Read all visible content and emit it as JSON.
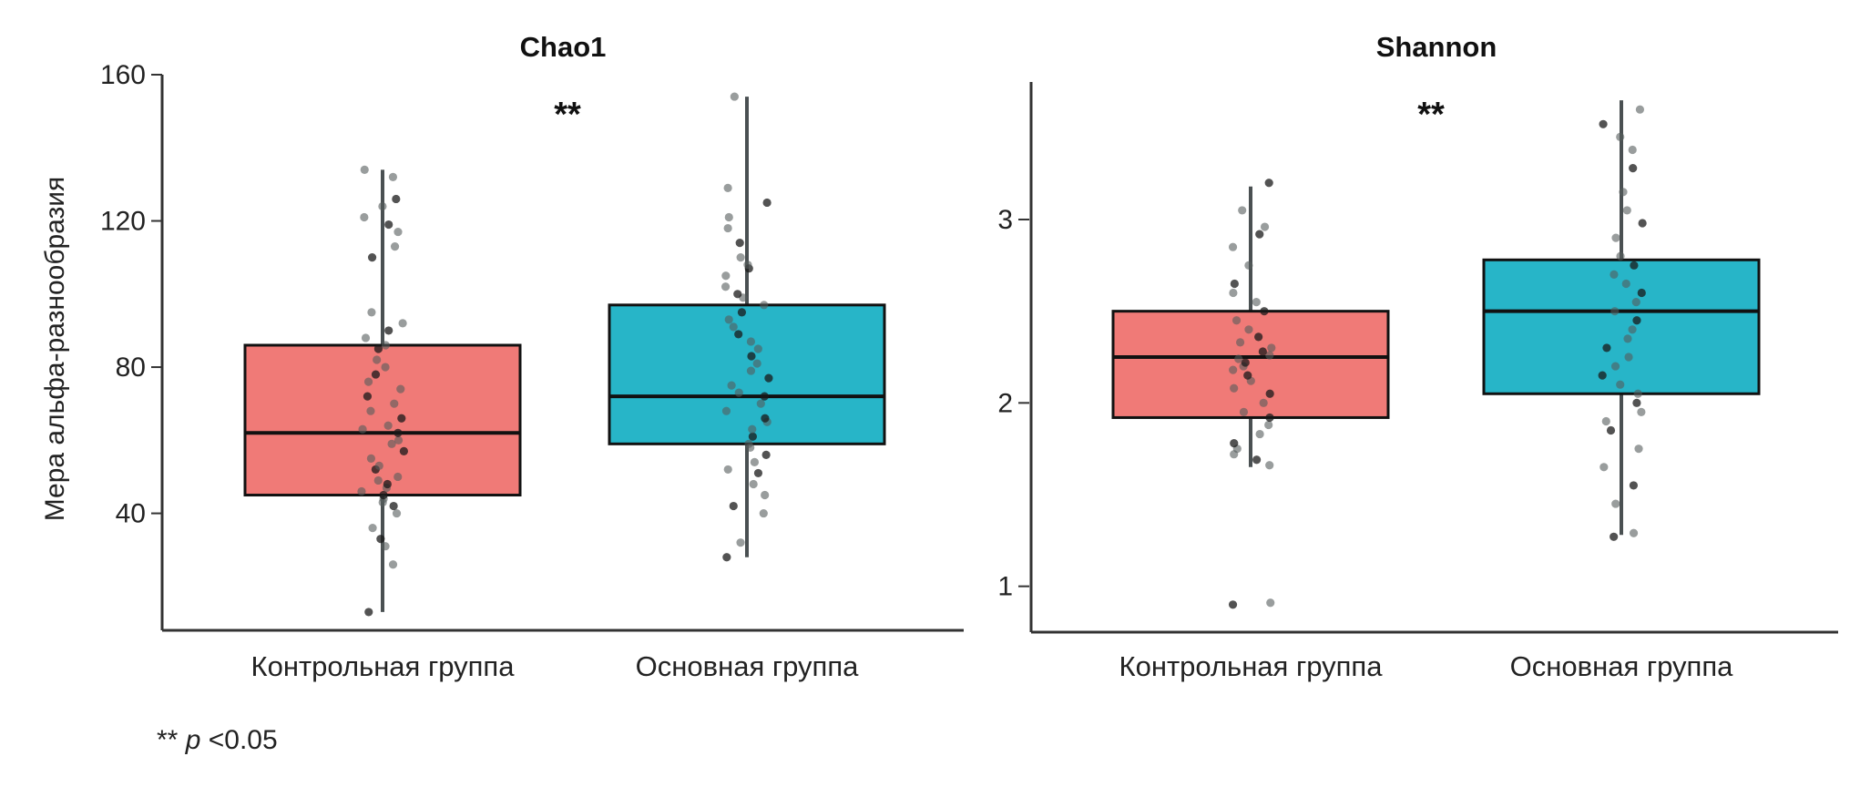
{
  "chart_data": [
    {
      "type": "box",
      "title": "Chao1",
      "ylabel": "Мера альфа-разнообразия",
      "ylim": [
        8,
        160
      ],
      "yticks": [
        "40",
        "80",
        "120",
        "160"
      ],
      "categories": [
        "Контрольная группа",
        "Основная группа"
      ],
      "significance": "**",
      "groups": [
        {
          "name": "Контрольная группа",
          "color": "#F07A77",
          "min": 13,
          "q1": 45,
          "median": 62,
          "q3": 86,
          "max": 134,
          "points": [
            13,
            26,
            31,
            33,
            36,
            40,
            42,
            43,
            44,
            45,
            46,
            47,
            48,
            49,
            50,
            52,
            53,
            55,
            57,
            59,
            60,
            62,
            63,
            64,
            66,
            68,
            70,
            72,
            74,
            76,
            78,
            80,
            82,
            85,
            86,
            88,
            90,
            92,
            95,
            110,
            113,
            117,
            119,
            121,
            124,
            126,
            132,
            134
          ]
        },
        {
          "name": "Основная группа",
          "color": "#27B5C8",
          "min": 28,
          "q1": 59,
          "median": 72,
          "q3": 97,
          "max": 154,
          "points": [
            28,
            32,
            40,
            42,
            45,
            48,
            51,
            52,
            54,
            56,
            58,
            59,
            61,
            63,
            65,
            66,
            68,
            70,
            72,
            73,
            75,
            77,
            79,
            81,
            83,
            85,
            87,
            89,
            91,
            93,
            95,
            97,
            99,
            100,
            102,
            105,
            107,
            108,
            110,
            114,
            118,
            121,
            125,
            129,
            154
          ]
        }
      ]
    },
    {
      "type": "box",
      "title": "Shannon",
      "ylim": [
        0.75,
        3.75
      ],
      "yticks": [
        "1",
        "2",
        "3"
      ],
      "categories": [
        "Контрольная группа",
        "Основная группа"
      ],
      "significance": "**",
      "groups": [
        {
          "name": "Контрольная группа",
          "color": "#F07A77",
          "min": 1.65,
          "q1": 1.92,
          "median": 2.25,
          "q3": 2.5,
          "max": 3.18,
          "points": [
            0.9,
            0.91,
            1.66,
            1.69,
            1.72,
            1.75,
            1.78,
            1.83,
            1.88,
            1.92,
            1.95,
            2.0,
            2.05,
            2.08,
            2.12,
            2.15,
            2.18,
            2.2,
            2.22,
            2.24,
            2.26,
            2.28,
            2.3,
            2.33,
            2.36,
            2.4,
            2.45,
            2.5,
            2.55,
            2.6,
            2.65,
            2.75,
            2.85,
            2.92,
            2.96,
            3.05,
            3.2
          ]
        },
        {
          "name": "Основная группа",
          "color": "#27B5C8",
          "min": 1.28,
          "q1": 2.05,
          "median": 2.5,
          "q3": 2.78,
          "max": 3.65,
          "points": [
            1.27,
            1.29,
            1.45,
            1.55,
            1.65,
            1.75,
            1.85,
            1.9,
            1.95,
            2.0,
            2.05,
            2.1,
            2.15,
            2.2,
            2.25,
            2.3,
            2.35,
            2.4,
            2.45,
            2.5,
            2.55,
            2.6,
            2.65,
            2.7,
            2.75,
            2.8,
            2.9,
            2.98,
            3.05,
            3.15,
            3.28,
            3.38,
            3.45,
            3.52,
            3.6
          ]
        }
      ]
    }
  ],
  "footnote": {
    "stars": "**",
    "p": "p",
    "rest": "<0.05"
  }
}
